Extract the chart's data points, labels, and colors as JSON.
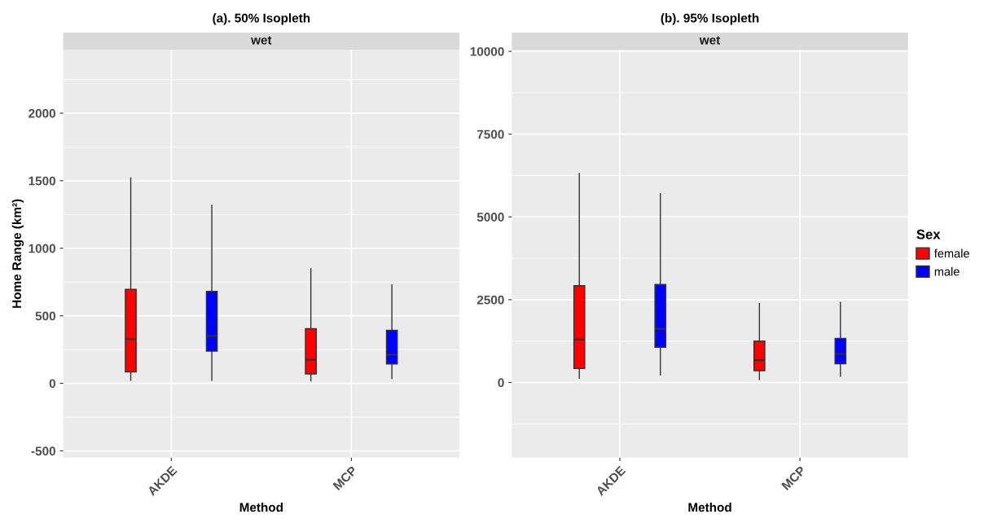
{
  "chart_data": [
    {
      "type": "box",
      "title": "(a). 50% Isopleth",
      "subtitle": "wet",
      "xlabel": "Method",
      "ylabel": "Home Range (km²)",
      "categories": [
        "AKDE",
        "MCP"
      ],
      "ylim": [
        -550,
        2470
      ],
      "yticks": [
        -500,
        0,
        500,
        1000,
        1500,
        2000
      ],
      "grid": true,
      "legend": false,
      "series": [
        {
          "color": "#ff0000",
          "boxes": [
            {
              "low": 22,
              "q1": 85,
              "median": 327,
              "q3": 695,
              "high": 1520
            },
            {
              "low": 18,
              "q1": 70,
              "median": 175,
              "q3": 404,
              "high": 848
            }
          ]
        },
        {
          "color": "#0000ff",
          "boxes": [
            {
              "low": 22,
              "q1": 238,
              "median": 350,
              "q3": 680,
              "high": 1318
            },
            {
              "low": 36,
              "q1": 143,
              "median": 213,
              "q3": 392,
              "high": 729
            }
          ]
        }
      ]
    },
    {
      "type": "box",
      "title": "(b). 95% Isopleth",
      "subtitle": "wet",
      "xlabel": "Method",
      "legend_title": "Sex",
      "categories": [
        "AKDE",
        "MCP"
      ],
      "ylim": [
        -2270,
        10050
      ],
      "yticks": [
        0,
        2500,
        5000,
        7500,
        10000
      ],
      "grid": true,
      "legend": "right",
      "series": [
        {
          "name": "female",
          "color": "#ff0000",
          "boxes": [
            {
              "low": 127,
              "q1": 420,
              "median": 1300,
              "q3": 2920,
              "high": 6310
            },
            {
              "low": 88,
              "q1": 352,
              "median": 674,
              "q3": 1250,
              "high": 2380
            }
          ]
        },
        {
          "name": "male",
          "color": "#0000ff",
          "boxes": [
            {
              "low": 225,
              "q1": 1064,
              "median": 1620,
              "q3": 2960,
              "high": 5700
            },
            {
              "low": 186,
              "q1": 566,
              "median": 860,
              "q3": 1330,
              "high": 2420
            }
          ]
        }
      ]
    }
  ]
}
